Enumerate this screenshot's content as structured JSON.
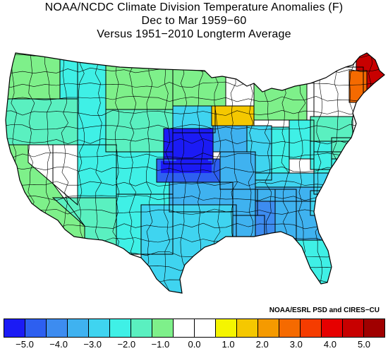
{
  "title": {
    "line1": "NOAA/NCDC Climate Division Temperature Anomalies (F)",
    "line2": "Dec to Mar 1959−60",
    "line3": "Versus 1951−2010 Longterm Average"
  },
  "credit": "NOAA/ESRL PSD and CIRES−CU",
  "legend": {
    "colors": [
      "#1b1bf5",
      "#2d5ff0",
      "#3d8cf0",
      "#3fb2f0",
      "#3fd4f0",
      "#3ff0e6",
      "#5af0c0",
      "#7ef08a",
      "#ffffff",
      "#ffffff",
      "#f5f500",
      "#f5c800",
      "#f59a00",
      "#f56a00",
      "#f53c00",
      "#e60000",
      "#c80000",
      "#a00000"
    ],
    "ticks": [
      "−5.0",
      "−4.0",
      "−3.0",
      "−2.0",
      "−1.0",
      "0.0",
      "1.0",
      "2.0",
      "3.0",
      "4.0",
      "5.0"
    ]
  },
  "chart_data": {
    "type": "heatmap",
    "variable": "Temperature Anomaly",
    "units": "F",
    "period": "Dec to Mar 1959-60",
    "baseline": "1951-2010",
    "scale_min": -5.0,
    "scale_max": 5.0,
    "scale_step": 0.5,
    "regions": [
      {
        "name": "Maine",
        "anomaly": 3.0
      },
      {
        "name": "Vermont / New Hampshire",
        "anomaly": 1.5
      },
      {
        "name": "Southern New England / New York",
        "anomaly": 0.0
      },
      {
        "name": "Minnesota (south) / Wisconsin",
        "anomaly": 0.5
      },
      {
        "name": "Washington",
        "anomaly": -1.5
      },
      {
        "name": "Oregon",
        "anomaly": -2.0
      },
      {
        "name": "California",
        "anomaly": -1.5
      },
      {
        "name": "Nevada",
        "anomaly": -0.5
      },
      {
        "name": "Idaho",
        "anomaly": -2.5
      },
      {
        "name": "Montana",
        "anomaly": -1.5
      },
      {
        "name": "Wyoming",
        "anomaly": -2.0
      },
      {
        "name": "Utah",
        "anomaly": -2.5
      },
      {
        "name": "Arizona",
        "anomaly": -2.0
      },
      {
        "name": "Colorado",
        "anomaly": -2.5
      },
      {
        "name": "New Mexico",
        "anomaly": -2.5
      },
      {
        "name": "North Dakota",
        "anomaly": -1.5
      },
      {
        "name": "South Dakota",
        "anomaly": -3.0
      },
      {
        "name": "Nebraska",
        "anomaly": -5.0
      },
      {
        "name": "Kansas",
        "anomaly": -4.5
      },
      {
        "name": "Oklahoma",
        "anomaly": -3.5
      },
      {
        "name": "Texas",
        "anomaly": -3.0
      },
      {
        "name": "Iowa",
        "anomaly": -3.5
      },
      {
        "name": "Missouri",
        "anomaly": -3.5
      },
      {
        "name": "Arkansas",
        "anomaly": -3.5
      },
      {
        "name": "Louisiana",
        "anomaly": -3.5
      },
      {
        "name": "Mississippi",
        "anomaly": -4.0
      },
      {
        "name": "Alabama",
        "anomaly": -3.5
      },
      {
        "name": "Tennessee",
        "anomaly": -3.5
      },
      {
        "name": "Kentucky",
        "anomaly": -3.0
      },
      {
        "name": "Illinois",
        "anomaly": -3.0
      },
      {
        "name": "Indiana",
        "anomaly": -2.5
      },
      {
        "name": "Ohio",
        "anomaly": -2.5
      },
      {
        "name": "Michigan",
        "anomaly": -1.5
      },
      {
        "name": "Georgia",
        "anomaly": -3.5
      },
      {
        "name": "Florida",
        "anomaly": -2.5
      },
      {
        "name": "South Carolina",
        "anomaly": -3.0
      },
      {
        "name": "North Carolina",
        "anomaly": -3.0
      },
      {
        "name": "Virginia",
        "anomaly": -2.5
      },
      {
        "name": "West Virginia",
        "anomaly": -2.5
      },
      {
        "name": "Pennsylvania",
        "anomaly": -2.0
      },
      {
        "name": "Mid-Atlantic coast",
        "anomaly": -2.0
      }
    ]
  }
}
